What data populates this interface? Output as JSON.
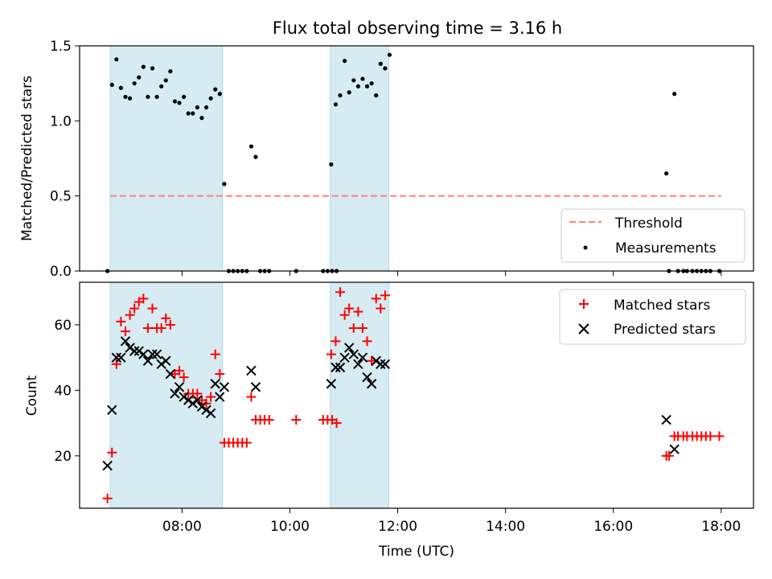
{
  "figure": {
    "title": "Flux total observing time = 3.16 h",
    "xlabel": "Time (UTC)"
  },
  "colors": {
    "shade": "#add8e6",
    "threshold": "#ff7f7f",
    "matched": "#ff0000",
    "predicted": "#000000",
    "measurement": "#000000"
  },
  "chart_data": [
    {
      "type": "scatter",
      "name": "ratio",
      "ylabel": "Matched/Predicted stars",
      "xlim": [
        "06:06",
        "18:36"
      ],
      "ylim": [
        0,
        1.5
      ],
      "yticks": [
        0.0,
        0.5,
        1.0,
        1.5
      ],
      "ytick_labels": [
        "0.0",
        "0.5",
        "1.0",
        "1.5"
      ],
      "grid": false,
      "legend_position": "lower right",
      "shaded_intervals": [
        [
          "06:40",
          "08:45"
        ],
        [
          "10:45",
          "11:50"
        ]
      ],
      "threshold": {
        "label": "Threshold",
        "value": 0.5,
        "x_range": [
          "06:40",
          "18:00"
        ]
      },
      "measurements": {
        "label": "Measurements",
        "points": [
          [
            "06:37",
            0.0
          ],
          [
            "06:42",
            1.24
          ],
          [
            "06:47",
            1.41
          ],
          [
            "06:52",
            1.22
          ],
          [
            "06:57",
            1.16
          ],
          [
            "07:02",
            1.15
          ],
          [
            "07:07",
            1.25
          ],
          [
            "07:12",
            1.29
          ],
          [
            "07:17",
            1.36
          ],
          [
            "07:22",
            1.16
          ],
          [
            "07:27",
            1.35
          ],
          [
            "07:32",
            1.16
          ],
          [
            "07:37",
            1.23
          ],
          [
            "07:42",
            1.27
          ],
          [
            "07:47",
            1.33
          ],
          [
            "07:52",
            1.13
          ],
          [
            "07:57",
            1.12
          ],
          [
            "08:02",
            1.16
          ],
          [
            "08:07",
            1.05
          ],
          [
            "08:12",
            1.05
          ],
          [
            "08:17",
            1.09
          ],
          [
            "08:22",
            1.02
          ],
          [
            "08:27",
            1.09
          ],
          [
            "08:32",
            1.15
          ],
          [
            "08:37",
            1.21
          ],
          [
            "08:42",
            1.18
          ],
          [
            "08:47",
            0.58
          ],
          [
            "08:52",
            0.0
          ],
          [
            "08:57",
            0.0
          ],
          [
            "09:02",
            0.0
          ],
          [
            "09:07",
            0.0
          ],
          [
            "09:12",
            0.0
          ],
          [
            "09:17",
            0.83
          ],
          [
            "09:22",
            0.76
          ],
          [
            "09:27",
            0.0
          ],
          [
            "09:32",
            0.0
          ],
          [
            "09:37",
            0.0
          ],
          [
            "10:07",
            0.0
          ],
          [
            "10:37",
            0.0
          ],
          [
            "10:42",
            0.0
          ],
          [
            "10:47",
            0.0
          ],
          [
            "10:52",
            0.0
          ],
          [
            "10:46",
            0.71
          ],
          [
            "10:51",
            1.11
          ],
          [
            "10:56",
            1.17
          ],
          [
            "11:01",
            1.4
          ],
          [
            "11:06",
            1.19
          ],
          [
            "11:11",
            1.27
          ],
          [
            "11:16",
            1.23
          ],
          [
            "11:21",
            1.28
          ],
          [
            "11:26",
            1.23
          ],
          [
            "11:31",
            1.25
          ],
          [
            "11:36",
            1.17
          ],
          [
            "11:41",
            1.38
          ],
          [
            "11:46",
            1.35
          ],
          [
            "11:51",
            1.44
          ],
          [
            "16:59",
            0.65
          ],
          [
            "17:02",
            0.0
          ],
          [
            "17:08",
            1.18
          ],
          [
            "17:12",
            0.0
          ],
          [
            "17:18",
            0.0
          ],
          [
            "17:22",
            0.0
          ],
          [
            "17:28",
            0.0
          ],
          [
            "17:33",
            0.0
          ],
          [
            "17:38",
            0.0
          ],
          [
            "17:43",
            0.0
          ],
          [
            "17:48",
            0.0
          ],
          [
            "17:58",
            0.0
          ]
        ]
      }
    },
    {
      "type": "scatter",
      "name": "counts",
      "ylabel": "Count",
      "xlim": [
        "06:06",
        "18:36"
      ],
      "ylim": [
        4,
        73
      ],
      "yticks": [
        20,
        40,
        60
      ],
      "ytick_labels": [
        "20",
        "40",
        "60"
      ],
      "xticks": [
        "08:00",
        "10:00",
        "12:00",
        "14:00",
        "16:00",
        "18:00"
      ],
      "xtick_labels": [
        "08:00",
        "10:00",
        "12:00",
        "14:00",
        "16:00",
        "18:00"
      ],
      "grid": false,
      "legend_position": "upper right",
      "shaded_intervals": [
        [
          "06:40",
          "08:45"
        ],
        [
          "10:45",
          "11:50"
        ]
      ],
      "series": [
        {
          "name": "Matched stars",
          "marker": "+",
          "points": [
            [
              "06:37",
              7
            ],
            [
              "06:42",
              21
            ],
            [
              "06:47",
              48
            ],
            [
              "06:52",
              61
            ],
            [
              "06:57",
              58
            ],
            [
              "07:02",
              63
            ],
            [
              "07:07",
              65
            ],
            [
              "07:12",
              67
            ],
            [
              "07:17",
              68
            ],
            [
              "07:22",
              59
            ],
            [
              "07:27",
              65
            ],
            [
              "07:32",
              59
            ],
            [
              "07:37",
              59
            ],
            [
              "07:42",
              62
            ],
            [
              "07:47",
              60
            ],
            [
              "07:52",
              45
            ],
            [
              "07:57",
              46
            ],
            [
              "08:02",
              44
            ],
            [
              "08:07",
              39
            ],
            [
              "08:12",
              39
            ],
            [
              "08:17",
              39
            ],
            [
              "08:22",
              37
            ],
            [
              "08:27",
              36
            ],
            [
              "08:32",
              38
            ],
            [
              "08:37",
              51
            ],
            [
              "08:42",
              45
            ],
            [
              "08:47",
              24
            ],
            [
              "08:52",
              24
            ],
            [
              "08:57",
              24
            ],
            [
              "09:02",
              24
            ],
            [
              "09:07",
              24
            ],
            [
              "09:12",
              24
            ],
            [
              "09:17",
              38
            ],
            [
              "09:22",
              31
            ],
            [
              "09:27",
              31
            ],
            [
              "09:32",
              31
            ],
            [
              "09:37",
              31
            ],
            [
              "10:07",
              31
            ],
            [
              "10:37",
              31
            ],
            [
              "10:42",
              31
            ],
            [
              "10:47",
              31
            ],
            [
              "10:52",
              30
            ],
            [
              "10:46",
              51
            ],
            [
              "10:51",
              55
            ],
            [
              "10:56",
              70
            ],
            [
              "11:01",
              63
            ],
            [
              "11:06",
              65
            ],
            [
              "11:11",
              59
            ],
            [
              "11:16",
              64
            ],
            [
              "11:21",
              59
            ],
            [
              "11:26",
              55
            ],
            [
              "11:31",
              49
            ],
            [
              "11:36",
              68
            ],
            [
              "11:41",
              65
            ],
            [
              "11:46",
              69
            ],
            [
              "16:59",
              20
            ],
            [
              "17:02",
              20
            ],
            [
              "17:08",
              26
            ],
            [
              "17:12",
              26
            ],
            [
              "17:18",
              26
            ],
            [
              "17:22",
              26
            ],
            [
              "17:28",
              26
            ],
            [
              "17:33",
              26
            ],
            [
              "17:38",
              26
            ],
            [
              "17:43",
              26
            ],
            [
              "17:48",
              26
            ],
            [
              "17:58",
              26
            ]
          ]
        },
        {
          "name": "Predicted stars",
          "marker": "x",
          "points": [
            [
              "06:37",
              17
            ],
            [
              "06:42",
              34
            ],
            [
              "06:47",
              50
            ],
            [
              "06:52",
              50
            ],
            [
              "06:57",
              55
            ],
            [
              "07:02",
              53
            ],
            [
              "07:07",
              52
            ],
            [
              "07:12",
              52
            ],
            [
              "07:17",
              51
            ],
            [
              "07:22",
              49
            ],
            [
              "07:27",
              51
            ],
            [
              "07:32",
              51
            ],
            [
              "07:37",
              48
            ],
            [
              "07:42",
              49
            ],
            [
              "07:47",
              45
            ],
            [
              "07:52",
              39
            ],
            [
              "07:57",
              41
            ],
            [
              "08:02",
              38
            ],
            [
              "08:07",
              37
            ],
            [
              "08:12",
              36
            ],
            [
              "08:17",
              37
            ],
            [
              "08:22",
              35
            ],
            [
              "08:27",
              34
            ],
            [
              "08:32",
              33
            ],
            [
              "08:37",
              42
            ],
            [
              "08:42",
              38
            ],
            [
              "08:47",
              41
            ],
            [
              "09:17",
              46
            ],
            [
              "09:22",
              41
            ],
            [
              "10:46",
              42
            ],
            [
              "10:51",
              47
            ],
            [
              "10:56",
              47
            ],
            [
              "11:01",
              50
            ],
            [
              "11:06",
              53
            ],
            [
              "11:11",
              51
            ],
            [
              "11:16",
              48
            ],
            [
              "11:21",
              50
            ],
            [
              "11:26",
              44
            ],
            [
              "11:31",
              42
            ],
            [
              "11:36",
              49
            ],
            [
              "11:41",
              48
            ],
            [
              "11:46",
              48
            ],
            [
              "16:59",
              31
            ],
            [
              "17:08",
              22
            ]
          ]
        }
      ]
    }
  ]
}
